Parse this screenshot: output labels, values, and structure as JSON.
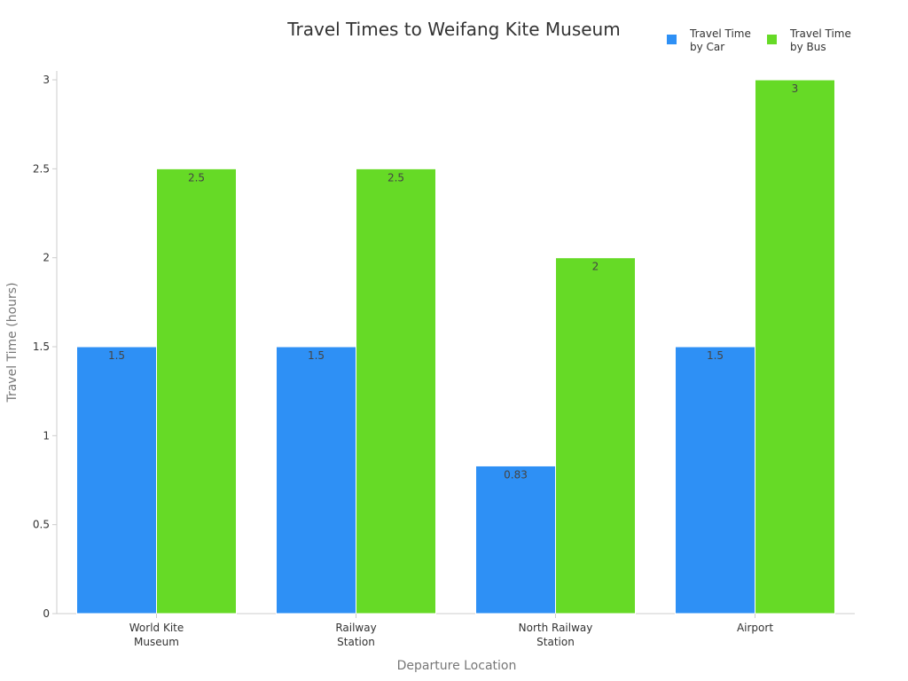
{
  "chart_data": {
    "type": "bar",
    "title": "Travel Times to Weifang Kite Museum",
    "xlabel": "Departure Location",
    "ylabel": "Travel Time (hours)",
    "categories": [
      [
        "World Kite",
        "Museum"
      ],
      [
        "Railway",
        "Station"
      ],
      [
        "North Railway",
        "Station"
      ],
      [
        "Airport"
      ]
    ],
    "series": [
      {
        "name": [
          "Travel Time",
          "by Car"
        ],
        "color": "#2e90f5",
        "values": [
          1.5,
          1.5,
          0.83,
          1.5
        ],
        "labels": [
          "1.5",
          "1.5",
          "0.83",
          "1.5"
        ]
      },
      {
        "name": [
          "Travel Time",
          "by Bus"
        ],
        "color": "#66da26",
        "values": [
          2.5,
          2.5,
          2,
          3
        ],
        "labels": [
          "2.5",
          "2.5",
          "2",
          "3"
        ]
      }
    ],
    "ylim": [
      0,
      3.05
    ],
    "yticks": [
      0,
      0.5,
      1,
      1.5,
      2,
      2.5,
      3
    ],
    "ytick_labels": [
      "0",
      "0.5",
      "1",
      "1.5",
      "2",
      "2.5",
      "3"
    ],
    "grid": false,
    "legend_position": "top-right"
  }
}
